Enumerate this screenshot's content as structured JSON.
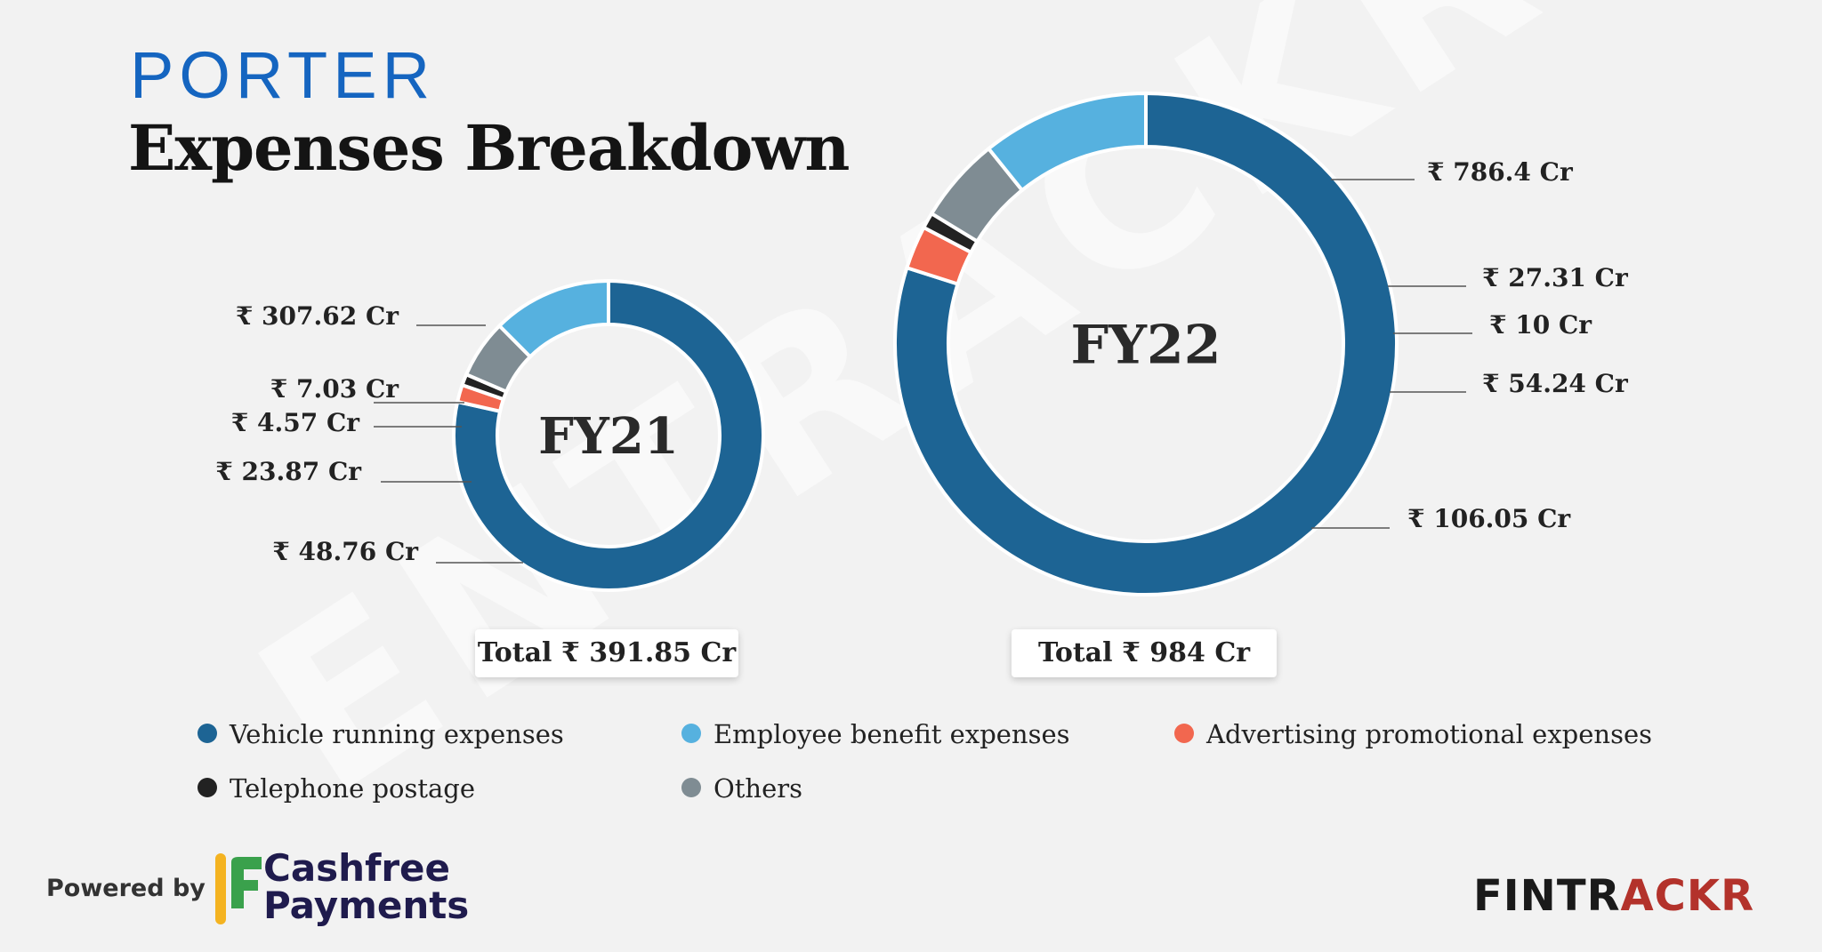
{
  "header": {
    "brand": "PORTER",
    "title": "Expenses Breakdown"
  },
  "colors": {
    "vehicle": "#1d6494",
    "employee": "#56b1df",
    "advertising": "#f2674f",
    "telephone": "#222222",
    "others": "#7f8c93",
    "background": "#f2f2f2"
  },
  "chart_data": [
    {
      "type": "pie",
      "title": "FY21",
      "total_label": "Total ₹ 391.85 Cr",
      "slices": [
        {
          "name": "Vehicle running expenses",
          "value": 307.62,
          "label": "₹ 307.62 Cr",
          "color_key": "vehicle"
        },
        {
          "name": "Advertising promotional expenses",
          "value": 7.03,
          "label": "₹ 7.03 Cr",
          "color_key": "advertising"
        },
        {
          "name": "Telephone postage",
          "value": 4.57,
          "label": "₹ 4.57 Cr",
          "color_key": "telephone"
        },
        {
          "name": "Others",
          "value": 23.87,
          "label": "₹ 23.87 Cr",
          "color_key": "others"
        },
        {
          "name": "Employee benefit expenses",
          "value": 48.76,
          "label": "₹ 48.76 Cr",
          "color_key": "employee"
        }
      ]
    },
    {
      "type": "pie",
      "title": "FY22",
      "total_label": "Total ₹ 984 Cr",
      "slices": [
        {
          "name": "Vehicle running expenses",
          "value": 786.4,
          "label": "₹ 786.4 Cr",
          "color_key": "vehicle"
        },
        {
          "name": "Advertising promotional expenses",
          "value": 27.31,
          "label": "₹ 27.31 Cr",
          "color_key": "advertising"
        },
        {
          "name": "Telephone postage",
          "value": 10,
          "label": "₹ 10 Cr",
          "color_key": "telephone"
        },
        {
          "name": "Others",
          "value": 54.24,
          "label": "₹ 54.24 Cr",
          "color_key": "others"
        },
        {
          "name": "Employee benefit expenses",
          "value": 106.05,
          "label": "₹ 106.05 Cr",
          "color_key": "employee"
        }
      ]
    }
  ],
  "legend": {
    "items": [
      {
        "label": "Vehicle running expenses",
        "color_key": "vehicle"
      },
      {
        "label": "Employee benefit expenses",
        "color_key": "employee"
      },
      {
        "label": "Advertising promotional expenses",
        "color_key": "advertising"
      },
      {
        "label": "Telephone postage",
        "color_key": "telephone"
      },
      {
        "label": "Others",
        "color_key": "others"
      }
    ]
  },
  "footer": {
    "powered_by": "Powered by",
    "cashfree_line1": "Cashfree",
    "cashfree_line2": "Payments",
    "fintrackr_dark": "FINTR",
    "fintrackr_red": "ACKR",
    "fintrackr_dark_color": "#1a1a1a",
    "fintrackr_red_color": "#b3322b"
  },
  "watermark": "ENTRACKR"
}
